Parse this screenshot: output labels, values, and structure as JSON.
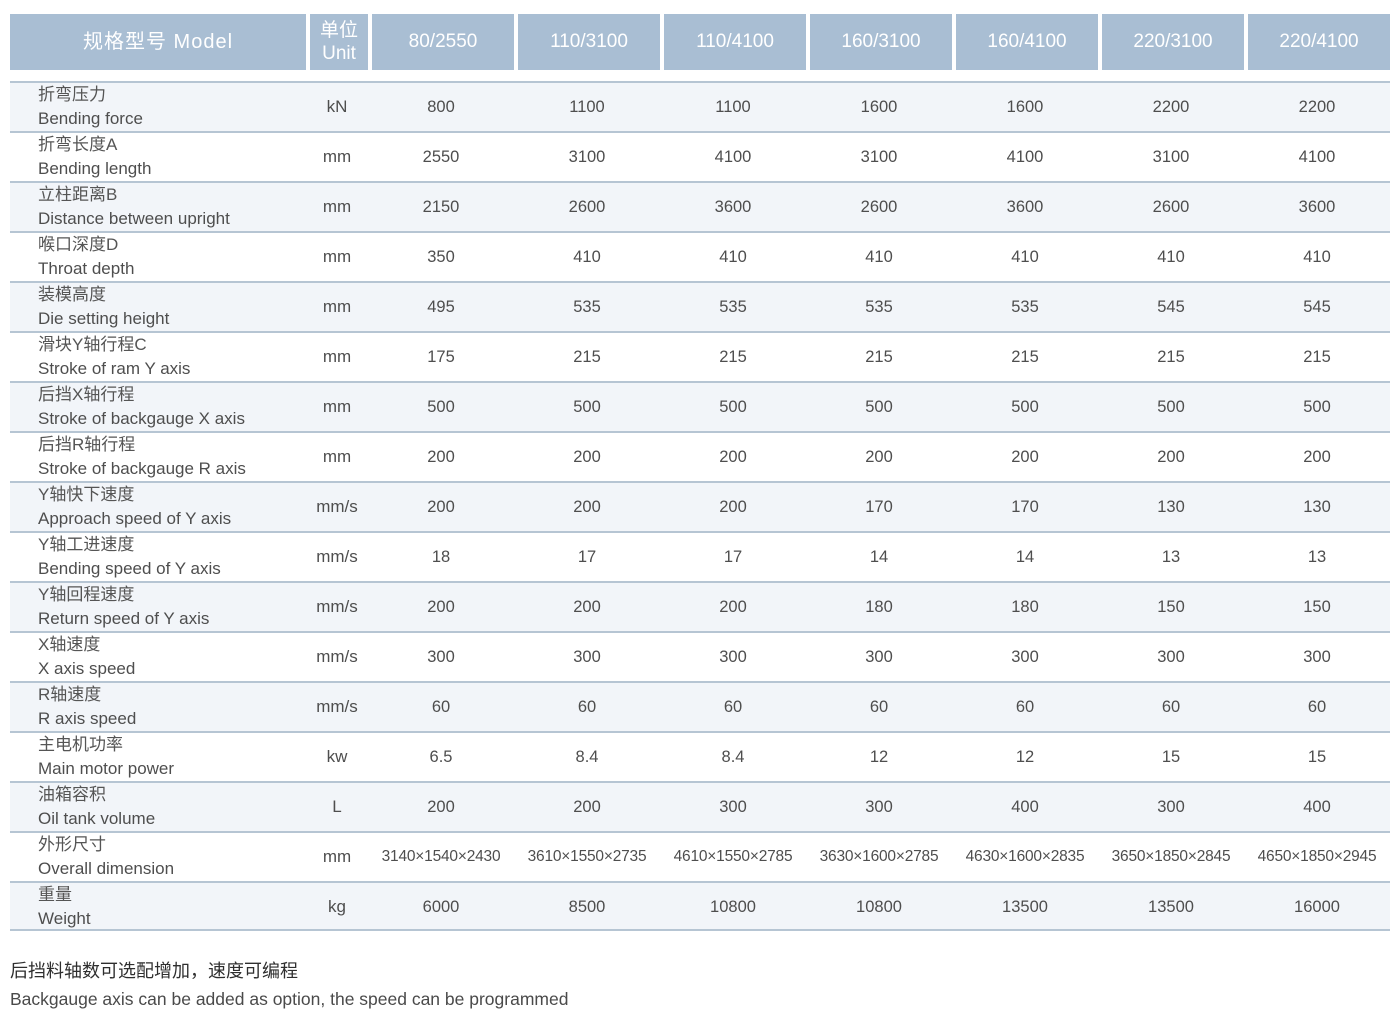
{
  "colors": {
    "header_bg": "#a9bed3",
    "header_text": "#ffffff",
    "row_stripe_bg": "#f2f5f9",
    "row_white_bg": "#ffffff",
    "row_border": "#b6c5d3",
    "body_text": "#4e4e4e"
  },
  "table": {
    "header": {
      "model_label": "规格型号  Model",
      "unit_label_zh": "单位",
      "unit_label_en": "Unit",
      "models": [
        "80/2550",
        "110/3100",
        "110/4100",
        "160/3100",
        "160/4100",
        "220/3100",
        "220/4100"
      ]
    },
    "rows": [
      {
        "zh": "折弯压力",
        "en": "Bending force",
        "unit": "kN",
        "values": [
          "800",
          "1100",
          "1100",
          "1600",
          "1600",
          "2200",
          "2200"
        ]
      },
      {
        "zh": "折弯长度A",
        "en": "Bending length",
        "unit": "mm",
        "values": [
          "2550",
          "3100",
          "4100",
          "3100",
          "4100",
          "3100",
          "4100"
        ]
      },
      {
        "zh": "立柱距离B",
        "en": "Distance between upright",
        "unit": "mm",
        "values": [
          "2150",
          "2600",
          "3600",
          "2600",
          "3600",
          "2600",
          "3600"
        ]
      },
      {
        "zh": "喉口深度D",
        "en": "Throat depth",
        "unit": "mm",
        "values": [
          "350",
          "410",
          "410",
          "410",
          "410",
          "410",
          "410"
        ]
      },
      {
        "zh": "装模高度",
        "en": "Die setting height",
        "unit": "mm",
        "values": [
          "495",
          "535",
          "535",
          "535",
          "535",
          "545",
          "545"
        ]
      },
      {
        "zh": "滑块Y轴行程C",
        "en": "Stroke of ram Y axis",
        "unit": "mm",
        "values": [
          "175",
          "215",
          "215",
          "215",
          "215",
          "215",
          "215"
        ]
      },
      {
        "zh": "后挡X轴行程",
        "en": "Stroke of backgauge X axis",
        "unit": "mm",
        "values": [
          "500",
          "500",
          "500",
          "500",
          "500",
          "500",
          "500"
        ]
      },
      {
        "zh": "后挡R轴行程",
        "en": "Stroke of backgauge R axis",
        "unit": "mm",
        "values": [
          "200",
          "200",
          "200",
          "200",
          "200",
          "200",
          "200"
        ]
      },
      {
        "zh": "Y轴快下速度",
        "en": "Approach speed of Y axis",
        "unit": "mm/s",
        "values": [
          "200",
          "200",
          "200",
          "170",
          "170",
          "130",
          "130"
        ]
      },
      {
        "zh": "Y轴工进速度",
        "en": "Bending speed of Y axis",
        "unit": "mm/s",
        "values": [
          "18",
          "17",
          "17",
          "14",
          "14",
          "13",
          "13"
        ]
      },
      {
        "zh": "Y轴回程速度",
        "en": "Return speed of Y axis",
        "unit": "mm/s",
        "values": [
          "200",
          "200",
          "200",
          "180",
          "180",
          "150",
          "150"
        ]
      },
      {
        "zh": "X轴速度",
        "en": "X axis speed",
        "unit": "mm/s",
        "values": [
          "300",
          "300",
          "300",
          "300",
          "300",
          "300",
          "300"
        ]
      },
      {
        "zh": "R轴速度",
        "en": "R axis speed",
        "unit": "mm/s",
        "values": [
          "60",
          "60",
          "60",
          "60",
          "60",
          "60",
          "60"
        ]
      },
      {
        "zh": "主电机功率",
        "en": "Main motor power",
        "unit": "kw",
        "values": [
          "6.5",
          "8.4",
          "8.4",
          "12",
          "12",
          "15",
          "15"
        ]
      },
      {
        "zh": "油箱容积",
        "en": "Oil tank volume",
        "unit": "L",
        "values": [
          "200",
          "200",
          "300",
          "300",
          "400",
          "300",
          "400"
        ]
      },
      {
        "zh": "外形尺寸",
        "en": "Overall dimension",
        "unit": "mm",
        "values": [
          "3140×1540×2430",
          "3610×1550×2735",
          "4610×1550×2785",
          "3630×1600×2785",
          "4630×1600×2835",
          "3650×1850×2845",
          "4650×1850×2945"
        ]
      },
      {
        "zh": "重量",
        "en": "Weight",
        "unit": "kg",
        "values": [
          "6000",
          "8500",
          "10800",
          "10800",
          "13500",
          "13500",
          "16000"
        ]
      }
    ]
  },
  "footnote": {
    "zh": "后挡料轴数可选配增加，速度可编程",
    "en": "Backgauge axis can be added as option, the speed can be programmed"
  }
}
